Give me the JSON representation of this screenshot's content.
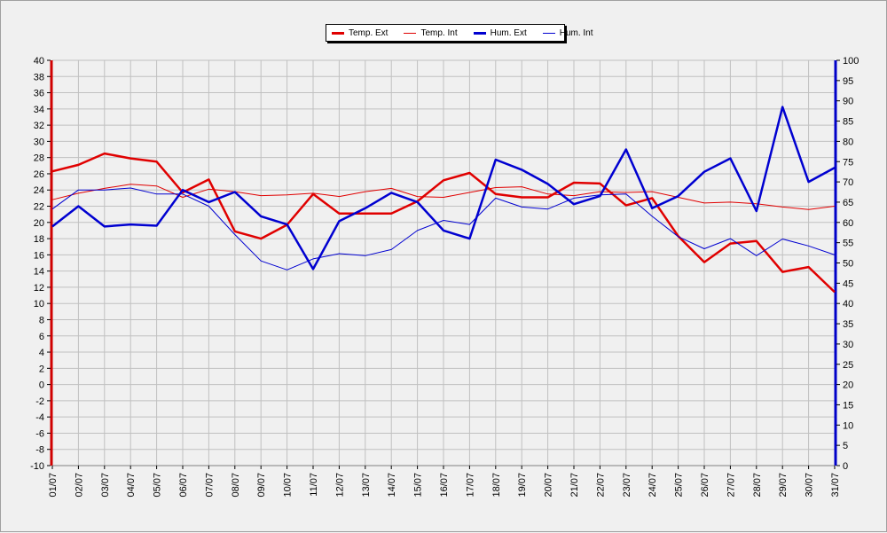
{
  "chart_data": {
    "type": "line",
    "categories": [
      "01/07",
      "02/07",
      "03/07",
      "04/07",
      "05/07",
      "06/07",
      "07/07",
      "08/07",
      "09/07",
      "10/07",
      "11/07",
      "12/07",
      "13/07",
      "14/07",
      "15/07",
      "16/07",
      "17/07",
      "18/07",
      "19/07",
      "20/07",
      "21/07",
      "22/07",
      "23/07",
      "24/07",
      "25/07",
      "26/07",
      "27/07",
      "28/07",
      "29/07",
      "30/07",
      "31/07"
    ],
    "left_axis": {
      "min": -10,
      "max": 40,
      "step": 2,
      "color": "#d00000"
    },
    "right_axis": {
      "min": 0,
      "max": 100,
      "step": 5,
      "color": "#0000c8"
    },
    "grid": true,
    "legend_position": "top-center",
    "series": [
      {
        "name": "Temp. Ext",
        "axis": "left",
        "color": "#e00000",
        "width": 2.5,
        "values": [
          26.3,
          27.1,
          28.5,
          27.9,
          27.5,
          23.7,
          25.3,
          18.9,
          18.0,
          19.7,
          23.5,
          21.1,
          21.1,
          21.1,
          22.6,
          25.2,
          26.1,
          23.5,
          23.1,
          23.1,
          24.9,
          24.8,
          22.1,
          23.0,
          18.3,
          15.1,
          17.4,
          17.7,
          13.9,
          14.5,
          11.4
        ]
      },
      {
        "name": "Temp. Int",
        "axis": "left",
        "color": "#e00000",
        "width": 1,
        "values": [
          22.8,
          23.6,
          24.2,
          24.7,
          24.5,
          23.1,
          24.1,
          23.8,
          23.3,
          23.4,
          23.6,
          23.2,
          23.8,
          24.2,
          23.2,
          23.1,
          23.7,
          24.3,
          24.4,
          23.5,
          23.3,
          23.8,
          23.7,
          23.8,
          23.1,
          22.4,
          22.5,
          22.3,
          21.9,
          21.6,
          22.0
        ]
      },
      {
        "name": "Hum. Ext",
        "axis": "right",
        "color": "#0000d0",
        "width": 2.5,
        "values": [
          59,
          64,
          59,
          59.5,
          59.2,
          68,
          65,
          67.5,
          61.5,
          59.5,
          48.5,
          60.3,
          63.5,
          67.3,
          65,
          58,
          56,
          75.5,
          73,
          69.5,
          64.5,
          66.5,
          78,
          63.5,
          66.5,
          72.5,
          75.8,
          62.8,
          88.5,
          70,
          73.5
        ]
      },
      {
        "name": "Hum. Int",
        "axis": "right",
        "color": "#0000d0",
        "width": 1,
        "values": [
          63.3,
          68,
          68,
          68.5,
          67,
          67,
          64,
          57,
          50.5,
          48.3,
          51,
          52.3,
          51.8,
          53.3,
          58,
          60.5,
          59.5,
          66,
          63.8,
          63.3,
          66,
          66.8,
          67,
          61.5,
          56.5,
          53.5,
          56,
          51.8,
          55.9,
          54.2,
          52
        ]
      }
    ]
  }
}
